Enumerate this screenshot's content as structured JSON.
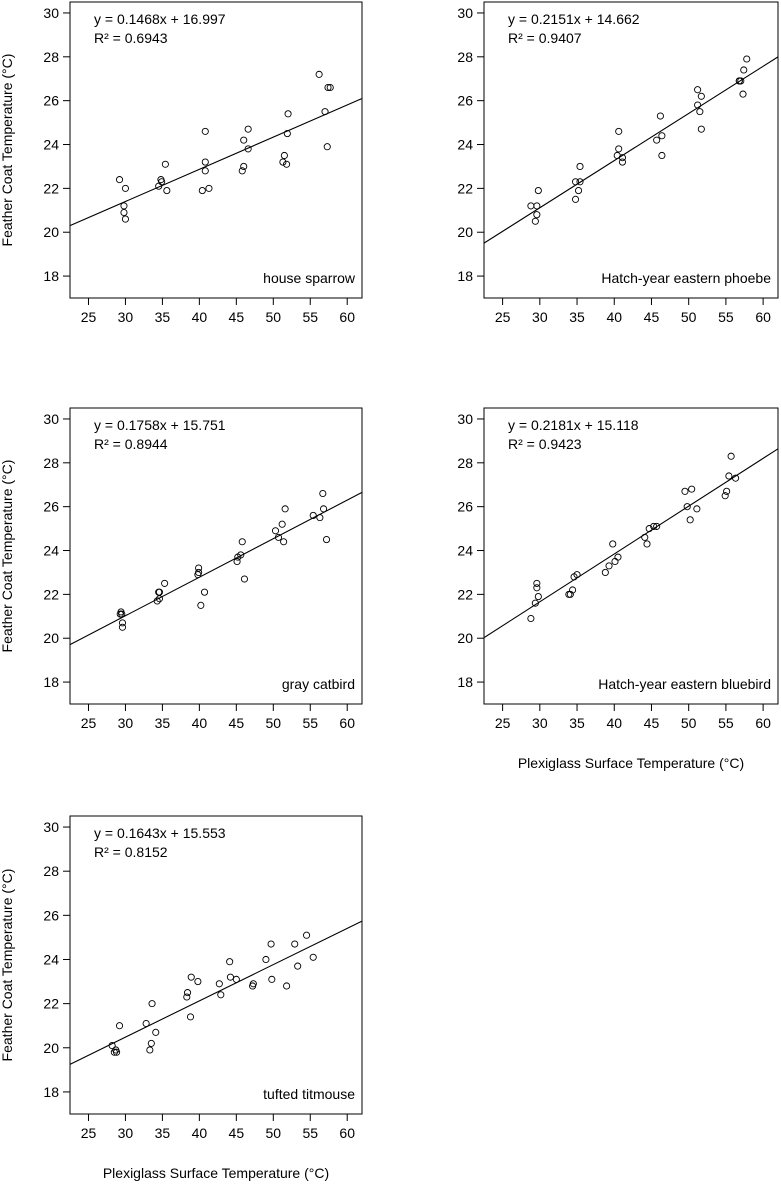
{
  "figure": {
    "ylabel": "Feather Coat Temperature (°C)",
    "xlabel": "Plexiglass Surface Temperature (°C)"
  },
  "chart_data": [
    {
      "type": "scatter",
      "label": "house sparrow",
      "equation": "y = 0.1468x + 16.997",
      "r2": "R² = 0.6943",
      "slope": 0.1468,
      "intercept": 16.997,
      "xlim": [
        22.5,
        62
      ],
      "ylim": [
        17,
        30.5
      ],
      "xticks": [
        25,
        30,
        35,
        40,
        45,
        50,
        55,
        60
      ],
      "yticks": [
        18,
        20,
        22,
        24,
        26,
        28,
        30
      ],
      "ylabel": "Feather Coat Temperature (°C)",
      "xlabel": "",
      "points": [
        [
          29.2,
          22.4
        ],
        [
          29.8,
          21.2
        ],
        [
          29.8,
          20.9
        ],
        [
          30.0,
          20.6
        ],
        [
          30.0,
          22.0
        ],
        [
          34.5,
          22.1
        ],
        [
          34.8,
          22.4
        ],
        [
          34.9,
          22.3
        ],
        [
          35.4,
          23.1
        ],
        [
          35.6,
          21.9
        ],
        [
          40.4,
          21.9
        ],
        [
          40.8,
          24.6
        ],
        [
          40.8,
          23.2
        ],
        [
          40.8,
          22.8
        ],
        [
          41.3,
          22.0
        ],
        [
          45.8,
          22.8
        ],
        [
          46.0,
          23.0
        ],
        [
          46.0,
          24.2
        ],
        [
          46.6,
          24.7
        ],
        [
          46.6,
          23.8
        ],
        [
          51.3,
          23.2
        ],
        [
          51.5,
          23.5
        ],
        [
          51.8,
          23.1
        ],
        [
          51.9,
          24.5
        ],
        [
          52.0,
          25.4
        ],
        [
          56.2,
          27.2
        ],
        [
          57.0,
          25.5
        ],
        [
          57.3,
          23.9
        ],
        [
          57.4,
          26.6
        ],
        [
          57.7,
          26.6
        ]
      ]
    },
    {
      "type": "scatter",
      "label": "Hatch-year eastern phoebe",
      "equation": "y = 0.2151x + 14.662",
      "r2": "R² = 0.9407",
      "slope": 0.2151,
      "intercept": 14.662,
      "xlim": [
        22.5,
        62
      ],
      "ylim": [
        17,
        30.5
      ],
      "xticks": [
        25,
        30,
        35,
        40,
        45,
        50,
        55,
        60
      ],
      "yticks": [
        18,
        20,
        22,
        24,
        26,
        28,
        30
      ],
      "ylabel": "",
      "xlabel": "",
      "points": [
        [
          28.8,
          21.2
        ],
        [
          29.4,
          20.5
        ],
        [
          29.6,
          21.2
        ],
        [
          29.6,
          20.8
        ],
        [
          29.8,
          21.9
        ],
        [
          34.8,
          22.3
        ],
        [
          34.8,
          21.5
        ],
        [
          35.2,
          21.9
        ],
        [
          35.4,
          22.3
        ],
        [
          35.4,
          23.0
        ],
        [
          40.4,
          23.5
        ],
        [
          40.6,
          23.8
        ],
        [
          40.6,
          24.6
        ],
        [
          41.1,
          23.2
        ],
        [
          41.1,
          23.4
        ],
        [
          45.7,
          24.2
        ],
        [
          46.2,
          25.3
        ],
        [
          46.4,
          24.4
        ],
        [
          46.4,
          23.5
        ],
        [
          51.2,
          25.8
        ],
        [
          51.2,
          26.5
        ],
        [
          51.5,
          25.5
        ],
        [
          51.7,
          24.7
        ],
        [
          51.7,
          26.2
        ],
        [
          56.8,
          26.9
        ],
        [
          56.8,
          26.9
        ],
        [
          57.0,
          26.9
        ],
        [
          57.3,
          26.3
        ],
        [
          57.4,
          27.4
        ],
        [
          57.8,
          27.9
        ]
      ]
    },
    {
      "type": "scatter",
      "label": "gray catbird",
      "equation": "y = 0.1758x + 15.751",
      "r2": "R² = 0.8944",
      "slope": 0.1758,
      "intercept": 15.751,
      "xlim": [
        22.5,
        62
      ],
      "ylim": [
        17,
        30.5
      ],
      "xticks": [
        25,
        30,
        35,
        40,
        45,
        50,
        55,
        60
      ],
      "yticks": [
        18,
        20,
        22,
        24,
        26,
        28,
        30
      ],
      "ylabel": "Feather Coat Temperature (°C)",
      "xlabel": "",
      "points": [
        [
          29.3,
          21.1
        ],
        [
          29.4,
          21.2
        ],
        [
          29.5,
          21.1
        ],
        [
          29.6,
          20.5
        ],
        [
          29.6,
          20.7
        ],
        [
          34.3,
          21.7
        ],
        [
          34.5,
          22.1
        ],
        [
          34.6,
          22.1
        ],
        [
          34.6,
          21.8
        ],
        [
          35.3,
          22.5
        ],
        [
          39.8,
          22.9
        ],
        [
          39.9,
          23.2
        ],
        [
          39.9,
          23.0
        ],
        [
          40.2,
          21.5
        ],
        [
          40.7,
          22.1
        ],
        [
          45.1,
          23.5
        ],
        [
          45.2,
          23.7
        ],
        [
          45.6,
          23.8
        ],
        [
          45.8,
          24.4
        ],
        [
          46.1,
          22.7
        ],
        [
          50.3,
          24.9
        ],
        [
          50.7,
          24.6
        ],
        [
          51.2,
          25.2
        ],
        [
          51.4,
          24.4
        ],
        [
          51.6,
          25.9
        ],
        [
          55.4,
          25.6
        ],
        [
          56.3,
          25.5
        ],
        [
          56.7,
          26.6
        ],
        [
          56.8,
          25.9
        ],
        [
          57.2,
          24.5
        ]
      ]
    },
    {
      "type": "scatter",
      "label": "Hatch-year eastern bluebird",
      "equation": "y = 0.2181x + 15.118",
      "r2": "R² = 0.9423",
      "slope": 0.2181,
      "intercept": 15.118,
      "xlim": [
        22.5,
        62
      ],
      "ylim": [
        17,
        30.5
      ],
      "xticks": [
        25,
        30,
        35,
        40,
        45,
        50,
        55,
        60
      ],
      "yticks": [
        18,
        20,
        22,
        24,
        26,
        28,
        30
      ],
      "ylabel": "",
      "xlabel": "Plexiglass Surface Temperature (°C)",
      "points": [
        [
          28.8,
          20.9
        ],
        [
          29.4,
          21.6
        ],
        [
          29.6,
          22.3
        ],
        [
          29.6,
          22.5
        ],
        [
          29.8,
          21.9
        ],
        [
          33.9,
          22.0
        ],
        [
          34.1,
          22.0
        ],
        [
          34.4,
          22.2
        ],
        [
          34.6,
          22.8
        ],
        [
          35.0,
          22.9
        ],
        [
          38.8,
          23.0
        ],
        [
          39.3,
          23.3
        ],
        [
          39.8,
          24.3
        ],
        [
          40.1,
          23.5
        ],
        [
          40.5,
          23.7
        ],
        [
          44.1,
          24.6
        ],
        [
          44.4,
          24.3
        ],
        [
          44.7,
          25.0
        ],
        [
          45.3,
          25.1
        ],
        [
          45.7,
          25.1
        ],
        [
          49.5,
          26.7
        ],
        [
          49.8,
          26.0
        ],
        [
          50.2,
          25.4
        ],
        [
          50.4,
          26.8
        ],
        [
          51.1,
          25.9
        ],
        [
          54.9,
          26.5
        ],
        [
          55.1,
          26.7
        ],
        [
          55.4,
          27.4
        ],
        [
          55.7,
          28.3
        ],
        [
          56.3,
          27.3
        ]
      ]
    },
    {
      "type": "scatter",
      "label": "tufted titmouse",
      "equation": "y = 0.1643x + 15.553",
      "r2": "R² = 0.8152",
      "slope": 0.1643,
      "intercept": 15.553,
      "xlim": [
        22.5,
        62
      ],
      "ylim": [
        17,
        30.5
      ],
      "xticks": [
        25,
        30,
        35,
        40,
        45,
        50,
        55,
        60
      ],
      "yticks": [
        18,
        20,
        22,
        24,
        26,
        28,
        30
      ],
      "ylabel": "Feather Coat Temperature (°C)",
      "xlabel": "Plexiglass Surface Temperature (°C)",
      "points": [
        [
          28.2,
          20.1
        ],
        [
          28.5,
          19.8
        ],
        [
          28.7,
          19.9
        ],
        [
          28.8,
          19.8
        ],
        [
          29.2,
          21.0
        ],
        [
          32.8,
          21.1
        ],
        [
          33.3,
          19.9
        ],
        [
          33.5,
          20.2
        ],
        [
          33.6,
          22.0
        ],
        [
          34.1,
          20.7
        ],
        [
          38.3,
          22.3
        ],
        [
          38.4,
          22.5
        ],
        [
          38.8,
          21.4
        ],
        [
          38.9,
          23.2
        ],
        [
          39.8,
          23.0
        ],
        [
          42.7,
          22.9
        ],
        [
          42.9,
          22.4
        ],
        [
          44.1,
          23.9
        ],
        [
          44.2,
          23.2
        ],
        [
          45.0,
          23.1
        ],
        [
          47.2,
          22.8
        ],
        [
          47.3,
          22.9
        ],
        [
          49.0,
          24.0
        ],
        [
          49.7,
          24.7
        ],
        [
          49.8,
          23.1
        ],
        [
          51.8,
          22.8
        ],
        [
          52.9,
          24.7
        ],
        [
          53.3,
          23.7
        ],
        [
          54.5,
          25.1
        ],
        [
          55.4,
          24.1
        ]
      ]
    }
  ]
}
